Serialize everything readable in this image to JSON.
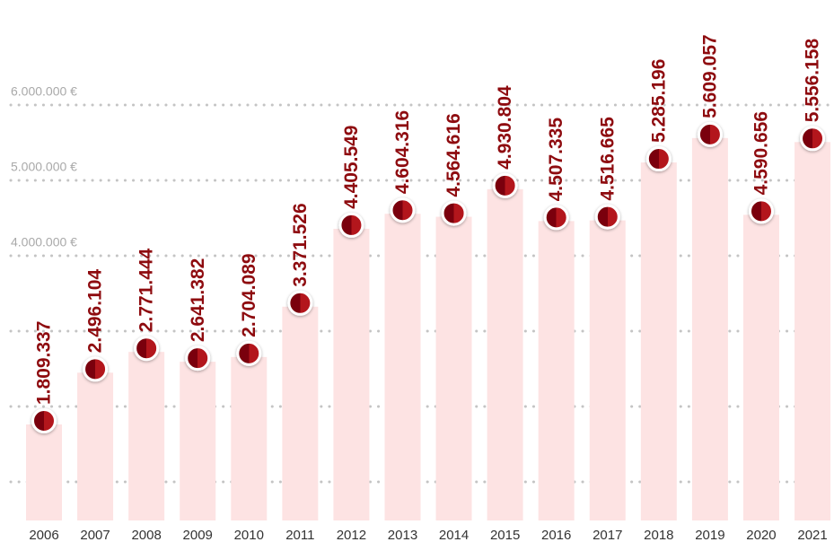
{
  "chart_data": {
    "type": "bar",
    "categories": [
      "2006",
      "2007",
      "2008",
      "2009",
      "2010",
      "2011",
      "2012",
      "2013",
      "2014",
      "2015",
      "2016",
      "2017",
      "2018",
      "2019",
      "2020",
      "2021"
    ],
    "values": [
      1809337,
      2496104,
      2771444,
      2641382,
      2704089,
      3371526,
      4405549,
      4604316,
      4564616,
      4930804,
      4507335,
      4516665,
      5285196,
      5609057,
      4590656,
      5556158
    ],
    "value_labels": [
      "1.809.337",
      "2.496.104",
      "2.771.444",
      "2.641.382",
      "2.704.089",
      "3.371.526",
      "4.405.549",
      "4.604.316",
      "4.564.616",
      "4.930.804",
      "4.507.335",
      "4.516.665",
      "5.285.196",
      "5.609.057",
      "4.590.656",
      "5.556.158"
    ],
    "color": "#fde3e3",
    "marker_color": "#a50f15",
    "label_color": "#8e0b0f",
    "ylim": [
      488000,
      7393000
    ],
    "yticks": [
      {
        "value": 1000000,
        "label": null
      },
      {
        "value": 2000000,
        "label": null
      },
      {
        "value": 3000000,
        "label": null
      },
      {
        "value": 4000000,
        "label": "4.000.000 €"
      },
      {
        "value": 5000000,
        "label": "5.000.000 €"
      },
      {
        "value": 6000000,
        "label": "6.000.000 €"
      }
    ],
    "grid": true
  }
}
